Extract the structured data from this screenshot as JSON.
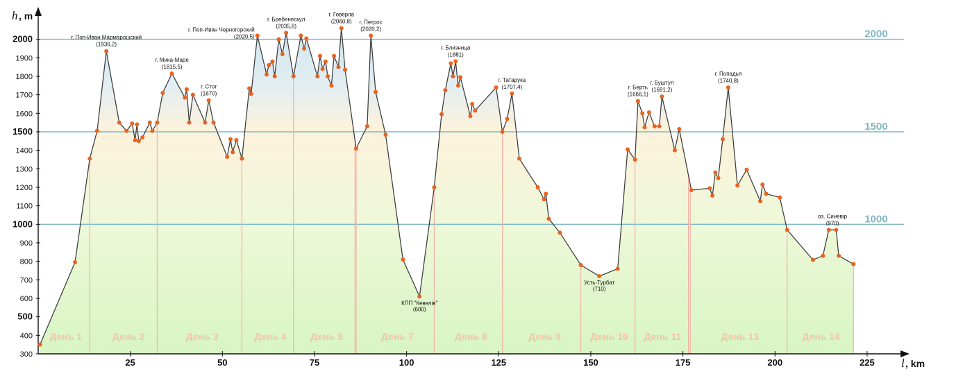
{
  "chart_data": {
    "type": "area",
    "xlabel": "l",
    "xunit": ", km",
    "ylabel": "h",
    "yunit": ", m",
    "xlim": [
      0,
      235
    ],
    "ylim": [
      300,
      2100
    ],
    "x_ticks": [
      25,
      50,
      75,
      100,
      125,
      150,
      175,
      200,
      225
    ],
    "y_ticks": [
      300,
      400,
      500,
      600,
      700,
      800,
      900,
      1000,
      1100,
      1200,
      1300,
      1400,
      1500,
      1600,
      1700,
      1800,
      1900,
      2000
    ],
    "y_major_ticks": [
      500,
      1000,
      1500,
      2000
    ],
    "reference_lines": [
      {
        "value": 2000,
        "label": "2000"
      },
      {
        "value": 1500,
        "label": "1500"
      },
      {
        "value": 1000,
        "label": "1000"
      }
    ],
    "colors": {
      "line": "#404040",
      "marker": "#e8641e",
      "reference": "#7fb9c4",
      "day_divider": "#f2b2a6",
      "day_label": "#f4c4a8",
      "fill_top": "#cfe6f3",
      "fill_mid": "#fdf2dc",
      "fill_bottom": "#d8f5c4"
    },
    "points": [
      [
        0.5,
        350
      ],
      [
        10,
        795
      ],
      [
        14,
        1355
      ],
      [
        16,
        1505
      ],
      [
        18.5,
        1936
      ],
      [
        22,
        1550
      ],
      [
        24,
        1505
      ],
      [
        25.5,
        1545
      ],
      [
        26.3,
        1455
      ],
      [
        26.8,
        1540
      ],
      [
        27.3,
        1450
      ],
      [
        28.3,
        1470
      ],
      [
        30.3,
        1550
      ],
      [
        31,
        1505
      ],
      [
        32.3,
        1550
      ],
      [
        33.8,
        1710
      ],
      [
        36.3,
        1815
      ],
      [
        39.8,
        1685
      ],
      [
        40.3,
        1730
      ],
      [
        41,
        1550
      ],
      [
        42,
        1700
      ],
      [
        45.3,
        1550
      ],
      [
        46.3,
        1670
      ],
      [
        47.6,
        1550
      ],
      [
        51.3,
        1365
      ],
      [
        52.2,
        1460
      ],
      [
        52.8,
        1390
      ],
      [
        53.8,
        1455
      ],
      [
        55.3,
        1355
      ],
      [
        57.3,
        1735
      ],
      [
        57.8,
        1705
      ],
      [
        59.5,
        2020
      ],
      [
        62,
        1810
      ],
      [
        62.6,
        1860
      ],
      [
        63.6,
        1880
      ],
      [
        64.2,
        1800
      ],
      [
        65.3,
        2000
      ],
      [
        66.3,
        1920
      ],
      [
        67.3,
        2035
      ],
      [
        69.3,
        1800
      ],
      [
        71.3,
        2020
      ],
      [
        72.2,
        1950
      ],
      [
        72.8,
        2005
      ],
      [
        75.8,
        1800
      ],
      [
        76.5,
        1910
      ],
      [
        77.2,
        1840
      ],
      [
        78,
        1880
      ],
      [
        78.6,
        1800
      ],
      [
        79.6,
        1750
      ],
      [
        80.3,
        1910
      ],
      [
        81.5,
        1850
      ],
      [
        82.3,
        2060
      ],
      [
        83.3,
        1835
      ],
      [
        86.3,
        1410
      ],
      [
        89.3,
        1530
      ],
      [
        90.3,
        2020
      ],
      [
        91.6,
        1715
      ],
      [
        94.3,
        1485
      ],
      [
        99,
        810
      ],
      [
        103.5,
        610
      ],
      [
        107.5,
        1200
      ],
      [
        109.5,
        1595
      ],
      [
        110.5,
        1725
      ],
      [
        112,
        1870
      ],
      [
        112.6,
        1800
      ],
      [
        113.3,
        1881
      ],
      [
        114,
        1750
      ],
      [
        114.6,
        1795
      ],
      [
        117.3,
        1585
      ],
      [
        117.8,
        1650
      ],
      [
        118.6,
        1615
      ],
      [
        124.3,
        1740
      ],
      [
        126,
        1500
      ],
      [
        127.3,
        1570
      ],
      [
        128.6,
        1707
      ],
      [
        130.6,
        1355
      ],
      [
        135.6,
        1200
      ],
      [
        137.3,
        1135
      ],
      [
        137.8,
        1165
      ],
      [
        138.6,
        1030
      ],
      [
        141.6,
        955
      ],
      [
        147.3,
        780
      ],
      [
        152.3,
        720
      ],
      [
        157.3,
        760
      ],
      [
        160,
        1405
      ],
      [
        162,
        1350
      ],
      [
        162.8,
        1666
      ],
      [
        164,
        1600
      ],
      [
        164.6,
        1525
      ],
      [
        165.8,
        1605
      ],
      [
        167.3,
        1530
      ],
      [
        168.6,
        1530
      ],
      [
        169.3,
        1691
      ],
      [
        172.8,
        1400
      ],
      [
        174,
        1515
      ],
      [
        177.3,
        1185
      ],
      [
        182.3,
        1195
      ],
      [
        183,
        1155
      ],
      [
        183.8,
        1280
      ],
      [
        184.6,
        1250
      ],
      [
        185.8,
        1460
      ],
      [
        187.3,
        1740
      ],
      [
        189.8,
        1210
      ],
      [
        192.3,
        1295
      ],
      [
        196,
        1125
      ],
      [
        196.6,
        1215
      ],
      [
        197.6,
        1165
      ],
      [
        201.3,
        1145
      ],
      [
        203.3,
        970
      ],
      [
        210.3,
        808
      ],
      [
        213,
        830
      ],
      [
        214.6,
        970
      ],
      [
        216.6,
        970
      ],
      [
        217.3,
        830
      ],
      [
        221.3,
        785
      ]
    ],
    "day_dividers": [
      14,
      32.3,
      55.3,
      69.3,
      86,
      86.3,
      107.5,
      126,
      147.3,
      162,
      176.5,
      177,
      203.3,
      221.3
    ],
    "day_labels": [
      {
        "x": 7.5,
        "label": "День 1"
      },
      {
        "x": 24.5,
        "label": "День 2"
      },
      {
        "x": 44.5,
        "label": "День 3"
      },
      {
        "x": 63,
        "label": "День 4"
      },
      {
        "x": 78.3,
        "label": "День 5"
      },
      {
        "x": 97.5,
        "label": "День 7"
      },
      {
        "x": 117.5,
        "label": "День 8"
      },
      {
        "x": 137.5,
        "label": "День 9"
      },
      {
        "x": 155,
        "label": "День 10"
      },
      {
        "x": 169.5,
        "label": "День 11"
      },
      {
        "x": 190.5,
        "label": "День 13"
      },
      {
        "x": 212.5,
        "label": "День 14"
      }
    ],
    "annotations": [
      {
        "x": 18.5,
        "y": 1936,
        "lines": [
          "г. Поп-Иван Мармарошский",
          "(1936,2)"
        ],
        "pos": "above"
      },
      {
        "x": 36.3,
        "y": 1815,
        "lines": [
          "г. Мика-Маре",
          "(1815,5)"
        ],
        "pos": "above"
      },
      {
        "x": 46.3,
        "y": 1670,
        "lines": [
          "г. Стог",
          "(1670)"
        ],
        "pos": "above"
      },
      {
        "x": 59.5,
        "y": 2020,
        "lines": [
          "г. Поп-Иван Черногорский",
          "(2020,5)"
        ],
        "pos": "above-left"
      },
      {
        "x": 67.3,
        "y": 2035,
        "lines": [
          "г. Бребенескул",
          "(2035,8)"
        ],
        "pos": "above"
      },
      {
        "x": 82.3,
        "y": 2060,
        "lines": [
          "г. Говерла",
          "(2060,8)"
        ],
        "pos": "above"
      },
      {
        "x": 90.3,
        "y": 2020,
        "lines": [
          "г. Петрос",
          "(2020,2)"
        ],
        "pos": "above"
      },
      {
        "x": 103.5,
        "y": 610,
        "lines": [
          "КПП \"Кевелів\"",
          "(600)"
        ],
        "pos": "below"
      },
      {
        "x": 113.3,
        "y": 1881,
        "lines": [
          "г. Близница",
          "(1881)"
        ],
        "pos": "above"
      },
      {
        "x": 128.6,
        "y": 1707,
        "lines": [
          "г. Татарука",
          "(1707,4)"
        ],
        "pos": "above"
      },
      {
        "x": 152.3,
        "y": 720,
        "lines": [
          "Усть-Турбат",
          "(710)"
        ],
        "pos": "below"
      },
      {
        "x": 162.8,
        "y": 1666,
        "lines": [
          "г. Берть",
          "(1666,1)"
        ],
        "pos": "above"
      },
      {
        "x": 169.3,
        "y": 1691,
        "lines": [
          "г. Буштул",
          "(1691,2)"
        ],
        "pos": "above"
      },
      {
        "x": 187.3,
        "y": 1740,
        "lines": [
          "г. Попадья",
          "(1740,8)"
        ],
        "pos": "above"
      },
      {
        "x": 215.6,
        "y": 970,
        "lines": [
          "оз. Синевір",
          "(970)"
        ],
        "pos": "above"
      }
    ]
  }
}
